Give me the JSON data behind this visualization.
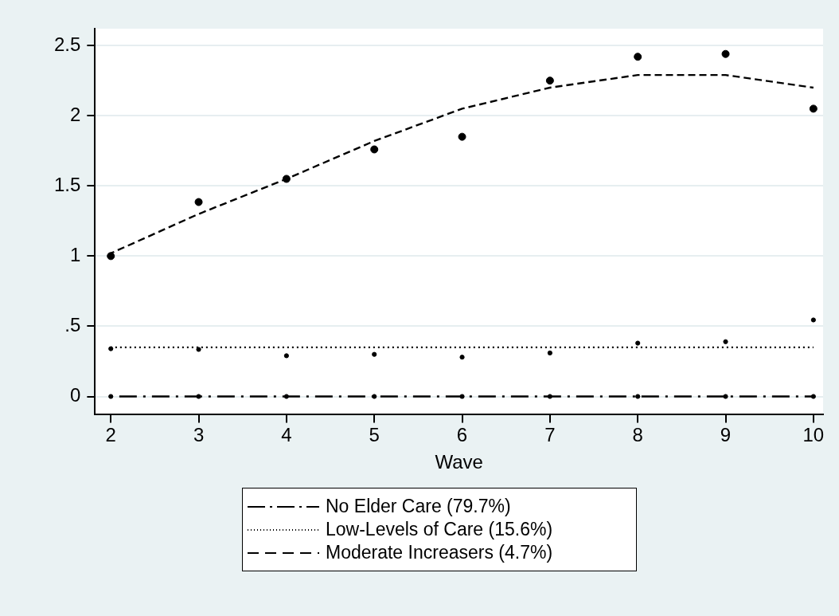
{
  "chart_data": {
    "type": "scatter",
    "xlabel": "Wave",
    "x": [
      2,
      3,
      4,
      5,
      6,
      7,
      8,
      9,
      10
    ],
    "xlim": [
      1.82,
      10.11
    ],
    "xticks": [
      2,
      3,
      4,
      5,
      6,
      7,
      8,
      9,
      10
    ],
    "ylim": [
      -0.13,
      2.62
    ],
    "yticks": [
      0,
      {
        "value": 0.5,
        "label": ".5"
      },
      1,
      1.5,
      2,
      2.5
    ],
    "grid": "y",
    "legend": "bottom",
    "marker": "circle",
    "series": [
      {
        "type": "scatter",
        "color": "#000000",
        "values": [
          0,
          0,
          0,
          0,
          0,
          0,
          0,
          0,
          0
        ]
      },
      {
        "type": "scatter",
        "color": "#000000",
        "values": [
          0.34,
          0.335,
          0.29,
          0.3,
          0.28,
          0.31,
          0.38,
          0.39,
          0.545
        ]
      },
      {
        "type": "scatter",
        "color": "#000000",
        "values": [
          1.0,
          1.385,
          1.55,
          1.76,
          1.85,
          2.25,
          2.42,
          2.44,
          2.05
        ]
      },
      {
        "type": "line",
        "name": "No Elder Care (79.7%)",
        "color": "#000000",
        "line_style": "dashdot",
        "marker": "none",
        "values": [
          0,
          0,
          0,
          0,
          0,
          0,
          0,
          0,
          0
        ]
      },
      {
        "type": "line",
        "name": "Low-Levels of Care (15.6%)",
        "color": "#000000",
        "line_style": "dotted",
        "marker": "none",
        "values": [
          0.35,
          0.35,
          0.35,
          0.35,
          0.35,
          0.35,
          0.35,
          0.35,
          0.35
        ]
      },
      {
        "type": "line",
        "name": "Moderate Increasers (4.7%)",
        "color": "#000000",
        "line_style": "dashed",
        "marker": "none",
        "values": [
          1.02,
          1.3,
          1.55,
          1.82,
          2.05,
          2.2,
          2.29,
          2.29,
          2.2
        ]
      }
    ]
  }
}
